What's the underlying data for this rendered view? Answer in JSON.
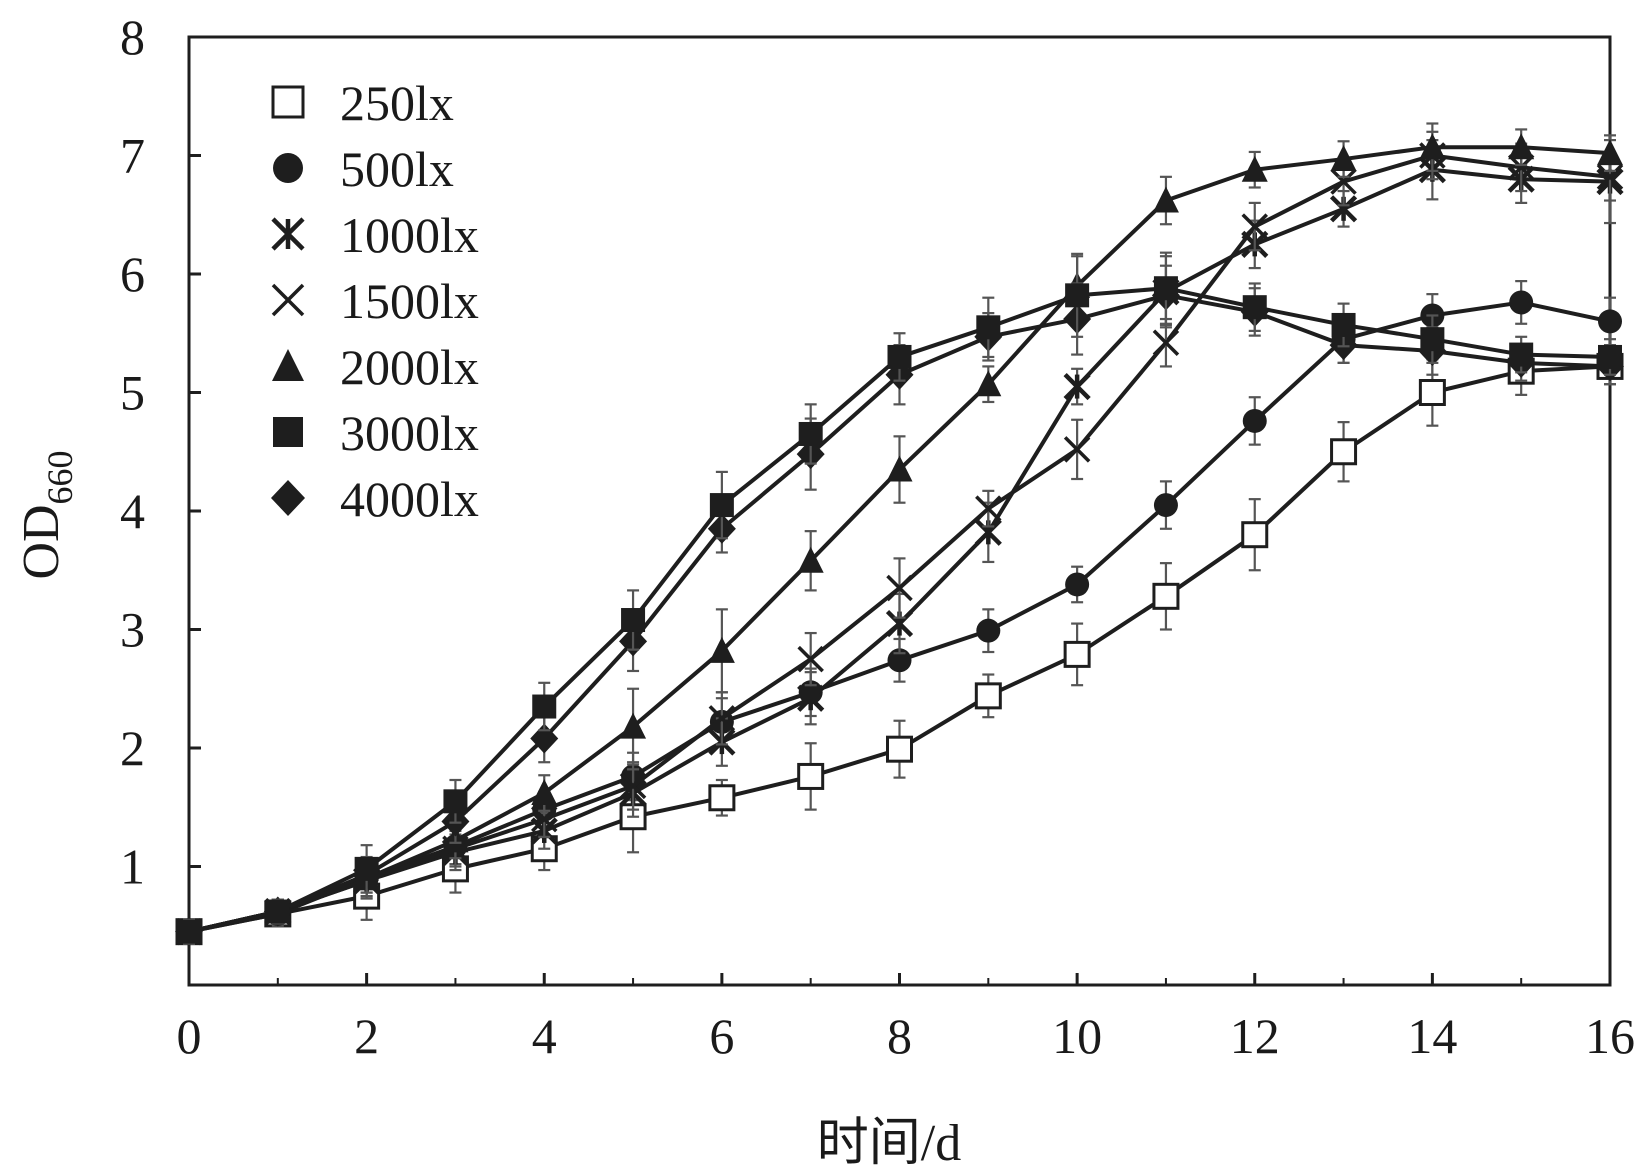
{
  "chart_data": {
    "type": "line",
    "xlabel": "时间/d",
    "ylabel_main": "OD",
    "ylabel_sub": "660",
    "xlim": [
      0,
      16
    ],
    "ylim": [
      0,
      8
    ],
    "x_ticks": [
      0,
      2,
      4,
      6,
      8,
      10,
      12,
      14,
      16
    ],
    "y_ticks": [
      1,
      2,
      3,
      4,
      5,
      6,
      7,
      8
    ],
    "grid": false,
    "legend_position": "top-left",
    "x": [
      0,
      1,
      2,
      3,
      4,
      5,
      6,
      7,
      8,
      9,
      10,
      11,
      12,
      13,
      14,
      15,
      16
    ],
    "series": [
      {
        "name": "250lx",
        "marker": "open-square",
        "values": [
          0.45,
          0.6,
          0.75,
          0.98,
          1.15,
          1.42,
          1.58,
          1.76,
          1.99,
          2.44,
          2.79,
          3.28,
          3.8,
          4.5,
          5.0,
          5.18,
          5.22
        ],
        "errors": [
          0.1,
          0.1,
          0.2,
          0.2,
          0.18,
          0.3,
          0.15,
          0.28,
          0.24,
          0.18,
          0.26,
          0.28,
          0.3,
          0.25,
          0.28,
          0.2,
          0.15
        ]
      },
      {
        "name": "500lx",
        "marker": "filled-circle",
        "values": [
          0.45,
          0.6,
          0.9,
          1.17,
          1.48,
          1.76,
          2.22,
          2.47,
          2.74,
          2.99,
          3.38,
          4.05,
          4.76,
          5.45,
          5.65,
          5.76,
          5.6
        ],
        "errors": [
          0.1,
          0.1,
          0.15,
          0.15,
          0.15,
          0.2,
          0.2,
          0.2,
          0.18,
          0.18,
          0.15,
          0.2,
          0.2,
          0.2,
          0.18,
          0.18,
          0.2
        ]
      },
      {
        "name": "1000lx",
        "marker": "asterisk",
        "values": [
          0.45,
          0.62,
          0.88,
          1.12,
          1.3,
          1.62,
          2.05,
          2.42,
          3.05,
          3.82,
          5.05,
          5.85,
          6.25,
          6.55,
          6.88,
          6.8,
          6.78
        ],
        "errors": [
          0.1,
          0.1,
          0.15,
          0.15,
          0.15,
          0.2,
          0.2,
          0.22,
          0.25,
          0.25,
          0.15,
          0.3,
          0.2,
          0.15,
          0.25,
          0.2,
          0.35
        ]
      },
      {
        "name": "1500lx",
        "marker": "x-cross",
        "values": [
          0.45,
          0.62,
          0.88,
          1.15,
          1.4,
          1.68,
          2.25,
          2.75,
          3.35,
          4.02,
          4.52,
          5.42,
          6.4,
          6.78,
          7.0,
          6.9,
          6.82
        ],
        "errors": [
          0.1,
          0.1,
          0.15,
          0.15,
          0.15,
          0.2,
          0.22,
          0.22,
          0.25,
          0.15,
          0.25,
          0.2,
          0.2,
          0.2,
          0.2,
          0.2,
          0.2
        ]
      },
      {
        "name": "2000lx",
        "marker": "filled-triangle",
        "values": [
          0.45,
          0.62,
          0.9,
          1.22,
          1.62,
          2.18,
          2.82,
          3.58,
          4.35,
          5.07,
          5.9,
          6.62,
          6.88,
          6.97,
          7.07,
          7.07,
          7.02
        ],
        "errors": [
          0.1,
          0.1,
          0.15,
          0.15,
          0.15,
          0.32,
          0.35,
          0.25,
          0.28,
          0.15,
          0.25,
          0.2,
          0.15,
          0.15,
          0.2,
          0.15,
          0.15
        ]
      },
      {
        "name": "3000lx",
        "marker": "filled-square",
        "values": [
          0.45,
          0.62,
          0.98,
          1.55,
          2.35,
          3.08,
          4.05,
          4.65,
          5.3,
          5.55,
          5.82,
          5.88,
          5.72,
          5.57,
          5.45,
          5.32,
          5.3
        ],
        "errors": [
          0.1,
          0.1,
          0.2,
          0.18,
          0.2,
          0.25,
          0.28,
          0.25,
          0.2,
          0.25,
          0.35,
          0.3,
          0.2,
          0.18,
          0.2,
          0.15,
          0.15
        ]
      },
      {
        "name": "4000lx",
        "marker": "filled-diamond",
        "values": [
          0.45,
          0.62,
          0.93,
          1.38,
          2.08,
          2.9,
          3.85,
          4.48,
          5.15,
          5.47,
          5.62,
          5.82,
          5.68,
          5.4,
          5.35,
          5.25,
          5.22
        ],
        "errors": [
          0.1,
          0.1,
          0.15,
          0.18,
          0.2,
          0.25,
          0.2,
          0.3,
          0.25,
          0.2,
          0.3,
          0.25,
          0.2,
          0.15,
          0.2,
          0.15,
          0.15
        ]
      }
    ]
  },
  "colors": {
    "ink": "#1e1e1e",
    "error_bar": "#555555",
    "background": "#ffffff"
  }
}
